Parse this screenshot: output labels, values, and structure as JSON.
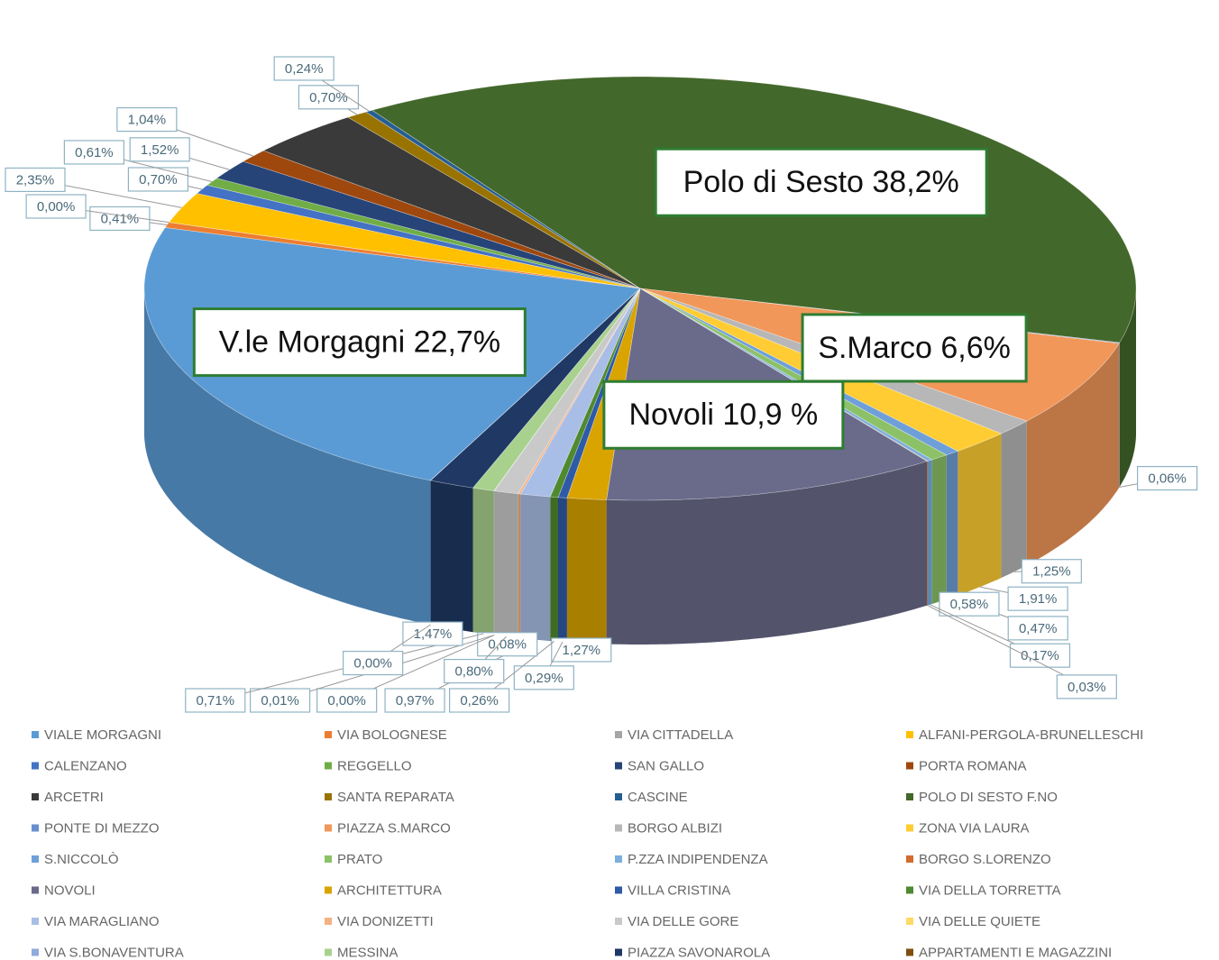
{
  "chart_data": {
    "type": "pie",
    "categories": [
      "VIALE MORGAGNI",
      "VIA BOLOGNESE",
      "VIA CITTADELLA",
      "ALFANI-PERGOLA-BRUNELLESCHI",
      "CALENZANO",
      "REGGELLO",
      "SAN GALLO",
      "PORTA ROMANA",
      "ARCETRI",
      "SANTA REPARATA",
      "CASCINE",
      "POLO DI SESTO F.NO",
      "PONTE DI MEZZO",
      "PIAZZA S.MARCO",
      "BORGO ALBIZI",
      "ZONA VIA LAURA",
      "S.NICCOLÒ",
      "PRATO",
      "P.ZZA INDIPENDENZA",
      "BORGO S.LORENZO",
      "NOVOLI",
      "ARCHITETTURA",
      "VILLA CRISTINA",
      "VIA DELLA TORRETTA",
      "VIA MARAGLIANO",
      "VIA DONIZETTI",
      "VIA DELLE GORE",
      "VIA DELLE QUIETE",
      "VIA S.BONAVENTURA",
      "MESSINA",
      "PIAZZA SAVONAROLA",
      "APPARTAMENTI E MAGAZZINI"
    ],
    "values": [
      22.7,
      0.41,
      0.0,
      2.35,
      0.7,
      0.61,
      1.52,
      1.04,
      3.7,
      0.7,
      0.24,
      38.2,
      0.06,
      6.6,
      1.25,
      1.91,
      0.47,
      0.58,
      0.17,
      0.03,
      10.9,
      1.27,
      0.29,
      0.26,
      0.97,
      0.08,
      0.8,
      0.0,
      0.01,
      0.71,
      1.47,
      0.0
    ],
    "value_labels": [
      "V.le Morgagni 22,7%",
      "0,41%",
      "0,00%",
      "2,35%",
      "0,70%",
      "0,61%",
      "1,52%",
      "1,04%",
      null,
      "0,70%",
      "0,24%",
      "Polo di Sesto 38,2%",
      "0,06%",
      "S.Marco 6,6%",
      "1,25%",
      "1,91%",
      "0,47%",
      "0,58%",
      "0,17%",
      "0,03%",
      "Novoli 10,9 %",
      "1,27%",
      "0,29%",
      "0,26%",
      "0,97%",
      "0,08%",
      "0,80%",
      "0,00%",
      "0,01%",
      "0,71%",
      "1,47%",
      "0,00%"
    ],
    "colors": [
      "#5b9bd5",
      "#ed7d31",
      "#a5a5a5",
      "#ffc000",
      "#4472c4",
      "#70ad47",
      "#264478",
      "#9e480e",
      "#3a3a3a",
      "#997300",
      "#255e91",
      "#43682b",
      "#698ed0",
      "#f1975a",
      "#b7b7b7",
      "#ffcd33",
      "#6f9fd8",
      "#8cc168",
      "#7cafdd",
      "#d26b2d",
      "#6a6a8a",
      "#d9a300",
      "#2e5aa8",
      "#4f8a30",
      "#a9bee6",
      "#f5b183",
      "#c9c9c9",
      "#ffd966",
      "#8faadc",
      "#a9d18e",
      "#1f3864",
      "#7f4f0f"
    ],
    "legend": "bottom"
  }
}
